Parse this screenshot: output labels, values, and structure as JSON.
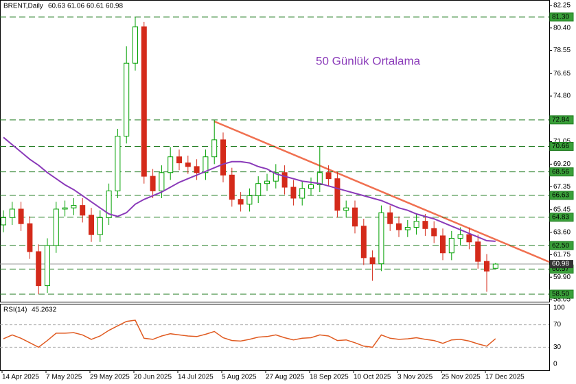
{
  "chart_data": {
    "type": "candlestick",
    "symbol": "BRENT,Daily",
    "annotation": "50 Günlük Ortalama",
    "categories": [
      "14 Apr 2025",
      null,
      null,
      null,
      null,
      "7 May 2025",
      null,
      null,
      null,
      null,
      "29 May 2025",
      null,
      null,
      null,
      null,
      "20 Jun 2025",
      null,
      null,
      null,
      null,
      "14 Jul 2025",
      null,
      null,
      null,
      null,
      "5 Aug 2025",
      null,
      null,
      null,
      null,
      "27 Aug 2025",
      null,
      null,
      null,
      null,
      "18 Sep 2025",
      null,
      null,
      null,
      null,
      "10 Oct 2025",
      null,
      null,
      null,
      null,
      "3 Nov 2025",
      null,
      null,
      null,
      null,
      "25 Nov 2025",
      null,
      null,
      null,
      null,
      "17 Dec 2025",
      null
    ],
    "open": [
      64.2,
      64.8,
      65.5,
      64.3,
      62,
      59.2,
      62.5,
      65.5,
      65.6,
      65.8,
      65,
      63.4,
      64.8,
      67,
      71.5,
      77.5,
      80.5,
      68.2,
      67,
      68.5,
      69.8,
      69.3,
      69,
      68.5,
      69.8,
      71.2,
      68.3,
      66.3,
      65.9,
      66.6,
      67.6,
      67.8,
      68.5,
      67.3,
      66.4,
      67.2,
      67.5,
      68.5,
      68,
      65.4,
      65.6,
      64.1,
      61.5,
      61,
      65.2,
      64.3,
      63.8,
      64,
      64.5,
      63.9,
      63.3,
      61.9,
      63.1,
      63.4,
      62.8,
      61.2,
      60.63
    ],
    "high": [
      65.4,
      66.1,
      66.1,
      64.9,
      62.6,
      63.1,
      66.1,
      66.2,
      66.4,
      66.4,
      65.6,
      65.4,
      67.6,
      72.1,
      78.9,
      81.3,
      80.9,
      68.8,
      69.1,
      70.6,
      70.4,
      69.9,
      69.6,
      70.4,
      72.84,
      71.8,
      68.9,
      66.9,
      67.2,
      68.2,
      68.4,
      69.2,
      69.1,
      67.9,
      67.8,
      68.1,
      70.66,
      69.1,
      68.6,
      66.2,
      66.2,
      64.7,
      62.1,
      65.8,
      65.8,
      64.9,
      64.6,
      65.1,
      65.1,
      64.5,
      63.9,
      63.7,
      64,
      64,
      63.4,
      61.8,
      61.06
    ],
    "low": [
      63.6,
      64.2,
      63.7,
      61.4,
      58.5,
      58.6,
      61.9,
      64.9,
      65,
      64.4,
      62.8,
      62.8,
      64.2,
      66.4,
      70.9,
      76.9,
      67.6,
      66.4,
      66.4,
      67.9,
      68.7,
      68.4,
      67.9,
      67.9,
      69.2,
      67.7,
      65.7,
      65.3,
      65.3,
      66,
      67,
      67.2,
      66.7,
      65.8,
      65.8,
      66.6,
      66.9,
      67.4,
      64.8,
      64.8,
      63.5,
      60.9,
      59.6,
      60.4,
      63.7,
      63.2,
      63.2,
      63.4,
      63.3,
      62.7,
      61.3,
      61.3,
      62.5,
      62.2,
      60.6,
      58.7,
      60.61
    ],
    "close": [
      64.8,
      65.5,
      64.3,
      62,
      59.2,
      62.5,
      65.5,
      65.6,
      65.8,
      65,
      63.4,
      64.8,
      67,
      71.5,
      77.5,
      80.5,
      68.2,
      67,
      68.5,
      69.8,
      69.3,
      69,
      68.5,
      69.8,
      71.2,
      68.3,
      66.3,
      65.9,
      66.6,
      67.6,
      67.8,
      68.5,
      67.3,
      66.4,
      67.2,
      67.5,
      68.5,
      68,
      65.4,
      65.6,
      64.1,
      61.5,
      61,
      65.2,
      64.3,
      63.8,
      64,
      64.5,
      63.9,
      63.3,
      61.9,
      63.1,
      63.4,
      62.8,
      61.2,
      60.4,
      60.98
    ],
    "up_color": "#00a000",
    "down_color": "#d42a1a",
    "ma": {
      "color": "#8a3ab9",
      "values": [
        71.4,
        70.8,
        70.2,
        69.6,
        69.1,
        68.5,
        68,
        67.5,
        67.1,
        66.6,
        66.1,
        65.6,
        65.1,
        64.9,
        65.2,
        65.9,
        66.3,
        66.6,
        66.9,
        67.3,
        67.7,
        68,
        68.3,
        68.6,
        68.9,
        69.2,
        69.4,
        69.4,
        69.3,
        69,
        68.8,
        68.4,
        68.2,
        68,
        67.8,
        67.7,
        67.6,
        67.4,
        67.2,
        67,
        66.8,
        66.6,
        66.4,
        66.2,
        65.9,
        65.6,
        65.4,
        65.1,
        64.9,
        64.7,
        64.4,
        64.1,
        63.8,
        63.5,
        63.2,
        62.9,
        62.85
      ]
    },
    "levels": [
      {
        "value": 81.3,
        "label": "81.30"
      },
      72.84,
      70.66,
      68.56,
      66.63,
      64.83,
      {
        "value": 62.5,
        "label": "62.50"
      },
      60.57,
      {
        "value": 58.5,
        "label": "58.50"
      }
    ],
    "level_color": "#1d7a1d",
    "ylim": [
      58.05,
      82.25
    ],
    "yticks": [
      82.25,
      {
        "value": 80.4,
        "label": "80.40"
      },
      78.55,
      76.65,
      {
        "value": 74.8,
        "label": "74.80"
      },
      71.05,
      {
        "value": 69.2,
        "label": "69.20"
      },
      67.35,
      65.45,
      {
        "value": 63.6,
        "label": "63.60"
      },
      61.75,
      {
        "value": 59.9,
        "label": "59.90"
      },
      58.05
    ],
    "rsi": {
      "name": "RSI(14)",
      "color": "#e05a20",
      "values": [
        45,
        52,
        46,
        38,
        30,
        42,
        55,
        55,
        56,
        52,
        44,
        50,
        60,
        68,
        76,
        78,
        46,
        44,
        50,
        54,
        52,
        50,
        49,
        53,
        58,
        47,
        42,
        41,
        44,
        48,
        49,
        52,
        47,
        43,
        46,
        47,
        52,
        50,
        42,
        43,
        38,
        32,
        30,
        52,
        46,
        44,
        45,
        47,
        44,
        42,
        37,
        43,
        44,
        41,
        36,
        32,
        45.2632
      ],
      "ylim": [
        0,
        100
      ],
      "yticks": [
        100,
        70,
        30,
        0
      ]
    }
  }
}
